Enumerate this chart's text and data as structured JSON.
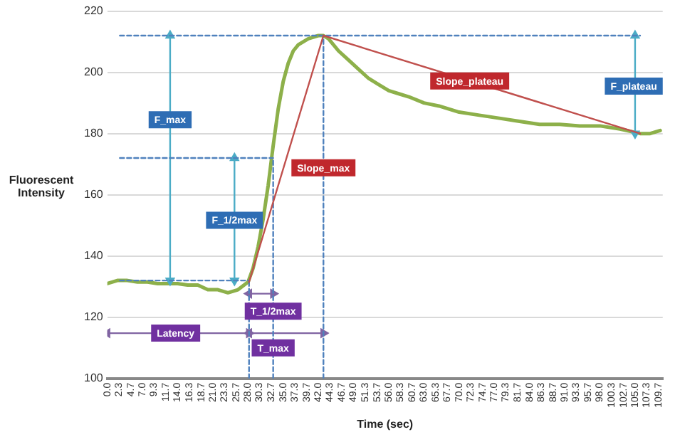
{
  "chart_data": {
    "type": "line",
    "xlabel": "Time (sec)",
    "ylabel": "Fluorescent Intensity",
    "xlim": [
      0,
      110.5
    ],
    "xticks": [
      {
        "value": 0,
        "label": "0.0"
      },
      2.3,
      4.7,
      {
        "value": 7,
        "label": "7.0"
      },
      9.3,
      11.7,
      {
        "value": 14,
        "label": "14.0"
      },
      16.3,
      18.7,
      {
        "value": 21,
        "label": "21.0"
      },
      23.3,
      25.7,
      {
        "value": 28,
        "label": "28.0"
      },
      30.3,
      32.7,
      {
        "value": 35,
        "label": "35.0"
      },
      37.3,
      39.7,
      {
        "value": 42,
        "label": "42.0"
      },
      44.3,
      46.7,
      {
        "value": 49,
        "label": "49.0"
      },
      51.3,
      53.7,
      {
        "value": 56,
        "label": "56.0"
      },
      58.3,
      60.7,
      {
        "value": 63,
        "label": "63.0"
      },
      65.3,
      67.7,
      {
        "value": 70,
        "label": "70.0"
      },
      72.3,
      74.7,
      {
        "value": 77,
        "label": "77.0"
      },
      79.3,
      81.7,
      {
        "value": 84,
        "label": "84.0"
      },
      86.3,
      88.7,
      {
        "value": 91,
        "label": "91.0"
      },
      93.3,
      95.7,
      {
        "value": 98,
        "label": "98.0"
      },
      100.3,
      102.7,
      {
        "value": 105,
        "label": "105.0"
      },
      107.3,
      109.7
    ],
    "ylim": [
      100,
      220
    ],
    "yticks": [
      100,
      120,
      140,
      160,
      180,
      200,
      220
    ],
    "grid": "y",
    "marker": "none",
    "line_style": "solid",
    "series": [
      {
        "color": "#8db04a",
        "x": [
          0,
          2,
          4,
          6,
          8,
          10,
          12,
          14,
          16,
          18,
          20,
          22,
          24,
          26,
          28,
          29,
          30,
          31,
          32,
          33,
          34,
          35,
          36,
          37,
          38,
          40,
          42,
          43,
          44,
          46,
          48,
          50,
          52,
          54,
          56,
          58,
          60,
          63,
          66,
          70,
          74,
          78,
          82,
          86,
          90,
          94,
          98,
          102,
          106,
          108,
          110
        ],
        "values": [
          131,
          132,
          132,
          131.5,
          131.5,
          131,
          131,
          131,
          130.5,
          130.5,
          129,
          129,
          128,
          129,
          131.5,
          136,
          143,
          152,
          163,
          176,
          188,
          197,
          203,
          207,
          209,
          211,
          212,
          212,
          211,
          207,
          204,
          201,
          198,
          196,
          194,
          193,
          192,
          190,
          189,
          187,
          186,
          185,
          184,
          183,
          183,
          182.5,
          182.5,
          181.5,
          180,
          180,
          181
        ]
      },
      {
        "color": "#c0504d",
        "x": [
          28.2,
          43
        ],
        "values": [
          131.5,
          212
        ]
      },
      {
        "color": "#c0504d",
        "x": [
          43,
          106
        ],
        "values": [
          212,
          180
        ]
      },
      {
        "color": "#4f81bd",
        "line_style": "dashed",
        "x": [
          2.5,
          106
        ],
        "values": [
          212,
          212
        ]
      },
      {
        "color": "#4f81bd",
        "line_style": "dashed",
        "x": [
          2.5,
          33
        ],
        "values": [
          172,
          172
        ]
      },
      {
        "color": "#4f81bd",
        "line_style": "dashed",
        "x": [
          2.5,
          28.2
        ],
        "values": [
          132,
          132
        ]
      },
      {
        "color": "#4f81bd",
        "line_style": "dashed",
        "x": [
          28.2,
          28.2
        ],
        "values": [
          100,
          132
        ]
      },
      {
        "color": "#4f81bd",
        "line_style": "dashed",
        "x": [
          33,
          33
        ],
        "values": [
          100,
          172
        ]
      },
      {
        "color": "#4f81bd",
        "line_style": "dashed",
        "x": [
          43,
          43
        ],
        "values": [
          100,
          212
        ]
      },
      {
        "color": "#4bacc6",
        "marker": "triangle",
        "x": [
          12.5,
          12.5
        ],
        "values": [
          132,
          212
        ]
      },
      {
        "color": "#4bacc6",
        "marker": "triangle",
        "x": [
          25.3,
          25.3
        ],
        "values": [
          132,
          172
        ]
      },
      {
        "color": "#4bacc6",
        "marker": "triangle",
        "x": [
          105,
          105
        ],
        "values": [
          180,
          212
        ]
      },
      {
        "color": "#8064a2",
        "marker": "triangle",
        "x": [
          28.2,
          33
        ],
        "values": [
          127.7,
          127.7
        ]
      },
      {
        "color": "#8064a2",
        "marker": "triangle",
        "x": [
          0,
          28.2
        ],
        "values": [
          114.8,
          114.8
        ]
      },
      {
        "color": "#8064a2",
        "marker": "triangle",
        "x": [
          28.2,
          43
        ],
        "values": [
          114.8,
          114.8
        ]
      }
    ],
    "annotations": [
      {
        "text": "F_max",
        "x": 12.5,
        "y": 184.5
      },
      {
        "text": "F_1/2max",
        "x": 25.3,
        "y": 151.7
      },
      {
        "text": "T_1/2max",
        "x": 33,
        "y": 122
      },
      {
        "text": "Latency",
        "x": 13.6,
        "y": 114.8
      },
      {
        "text": "T_max",
        "x": 33,
        "y": 110
      },
      {
        "text": "Slope_max",
        "x": 43,
        "y": 168.8
      },
      {
        "text": "Slope_plateau",
        "x": 72.1,
        "y": 197.2
      },
      {
        "text": "F_plateau",
        "x": 105,
        "y": 195.5
      }
    ],
    "legend": false
  }
}
